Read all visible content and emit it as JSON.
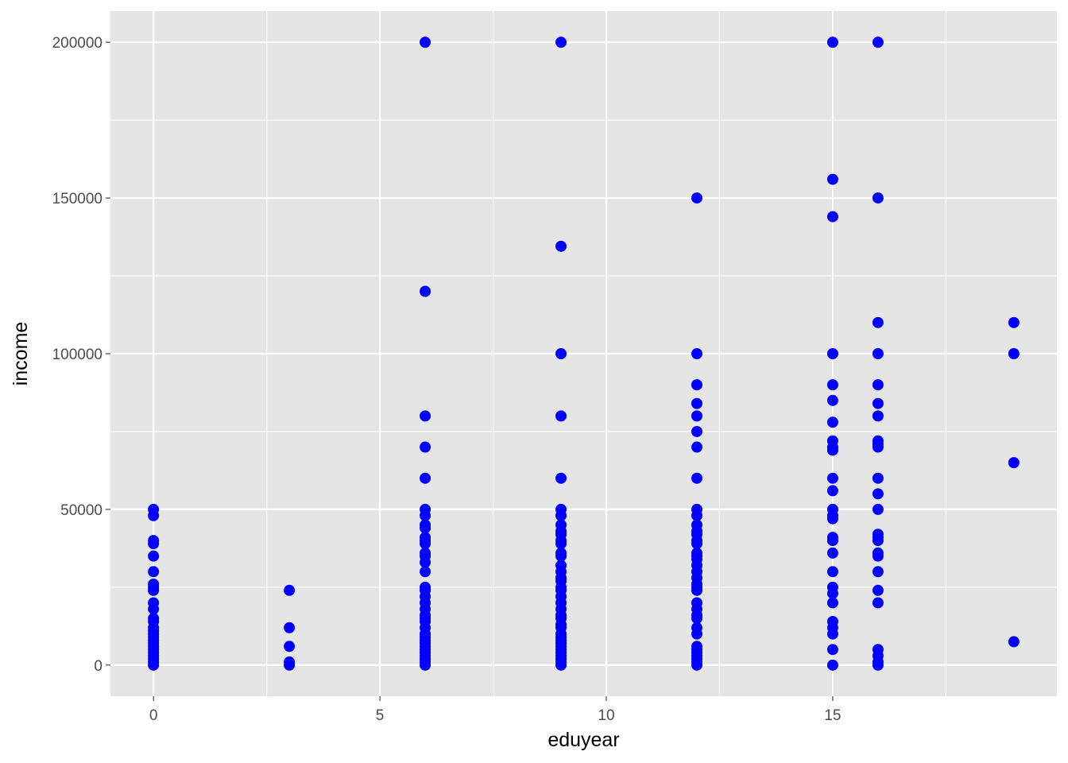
{
  "chart_data": {
    "type": "scatter",
    "title": "",
    "xlabel": "eduyear",
    "ylabel": "income",
    "xlim": [
      -0.95,
      19.95
    ],
    "ylim": [
      -10000,
      210000
    ],
    "x_major_ticks": [
      0,
      5,
      10,
      15
    ],
    "x_tick_labels": [
      "0",
      "5",
      "10",
      "15"
    ],
    "x_minor_ticks": [
      2.5,
      7.5,
      12.5,
      17.5
    ],
    "y_major_ticks": [
      0,
      50000,
      100000,
      150000,
      200000
    ],
    "y_tick_labels": [
      "0",
      "50000",
      "100000",
      "150000",
      "200000"
    ],
    "y_minor_ticks": [
      25000,
      75000,
      125000,
      175000
    ],
    "grid": true,
    "legend": "none",
    "colors": {
      "panel": "#e5e5e5",
      "grid": "#ffffff",
      "point": "#0000ff",
      "tick_text": "#4d4d4d",
      "tick_mark": "#333333",
      "axis_title": "#000000"
    },
    "series": [
      {
        "points": [
          [
            0,
            0
          ],
          [
            0,
            1000
          ],
          [
            0,
            2000
          ],
          [
            0,
            3000
          ],
          [
            0,
            4000
          ],
          [
            0,
            5000
          ],
          [
            0,
            6000
          ],
          [
            0,
            7000
          ],
          [
            0,
            8000
          ],
          [
            0,
            9000
          ],
          [
            0,
            10000
          ],
          [
            0,
            11000
          ],
          [
            0,
            12000
          ],
          [
            0,
            14000
          ],
          [
            0,
            15000
          ],
          [
            0,
            18000
          ],
          [
            0,
            20000
          ],
          [
            0,
            24000
          ],
          [
            0,
            25000
          ],
          [
            0,
            26000
          ],
          [
            0,
            30000
          ],
          [
            0,
            35000
          ],
          [
            0,
            39000
          ],
          [
            0,
            40000
          ],
          [
            0,
            48000
          ],
          [
            0,
            50000
          ],
          [
            3,
            0
          ],
          [
            3,
            1000
          ],
          [
            3,
            6000
          ],
          [
            3,
            12000
          ],
          [
            3,
            24000
          ],
          [
            6,
            0
          ],
          [
            6,
            1000
          ],
          [
            6,
            2000
          ],
          [
            6,
            3000
          ],
          [
            6,
            4000
          ],
          [
            6,
            5000
          ],
          [
            6,
            6000
          ],
          [
            6,
            7000
          ],
          [
            6,
            8000
          ],
          [
            6,
            9000
          ],
          [
            6,
            10000
          ],
          [
            6,
            12000
          ],
          [
            6,
            14000
          ],
          [
            6,
            15000
          ],
          [
            6,
            16000
          ],
          [
            6,
            18000
          ],
          [
            6,
            20000
          ],
          [
            6,
            22000
          ],
          [
            6,
            24000
          ],
          [
            6,
            25000
          ],
          [
            6,
            30000
          ],
          [
            6,
            33000
          ],
          [
            6,
            35000
          ],
          [
            6,
            36000
          ],
          [
            6,
            39000
          ],
          [
            6,
            40000
          ],
          [
            6,
            41000
          ],
          [
            6,
            44000
          ],
          [
            6,
            45000
          ],
          [
            6,
            48000
          ],
          [
            6,
            50000
          ],
          [
            6,
            60000
          ],
          [
            6,
            70000
          ],
          [
            6,
            80000
          ],
          [
            6,
            120000
          ],
          [
            6,
            200000
          ],
          [
            9,
            0
          ],
          [
            9,
            1000
          ],
          [
            9,
            2000
          ],
          [
            9,
            3000
          ],
          [
            9,
            4000
          ],
          [
            9,
            5000
          ],
          [
            9,
            6000
          ],
          [
            9,
            7000
          ],
          [
            9,
            8000
          ],
          [
            9,
            9000
          ],
          [
            9,
            10000
          ],
          [
            9,
            12000
          ],
          [
            9,
            13000
          ],
          [
            9,
            15000
          ],
          [
            9,
            16000
          ],
          [
            9,
            18000
          ],
          [
            9,
            20000
          ],
          [
            9,
            22000
          ],
          [
            9,
            24000
          ],
          [
            9,
            25000
          ],
          [
            9,
            27000
          ],
          [
            9,
            28000
          ],
          [
            9,
            30000
          ],
          [
            9,
            32000
          ],
          [
            9,
            35000
          ],
          [
            9,
            36000
          ],
          [
            9,
            39000
          ],
          [
            9,
            40000
          ],
          [
            9,
            42000
          ],
          [
            9,
            43000
          ],
          [
            9,
            45000
          ],
          [
            9,
            48000
          ],
          [
            9,
            50000
          ],
          [
            9,
            60000
          ],
          [
            9,
            80000
          ],
          [
            9,
            100000
          ],
          [
            9,
            134500
          ],
          [
            9,
            200000
          ],
          [
            12,
            0
          ],
          [
            12,
            1000
          ],
          [
            12,
            2000
          ],
          [
            12,
            3000
          ],
          [
            12,
            4000
          ],
          [
            12,
            5000
          ],
          [
            12,
            6000
          ],
          [
            12,
            10000
          ],
          [
            12,
            12000
          ],
          [
            12,
            15000
          ],
          [
            12,
            16000
          ],
          [
            12,
            18000
          ],
          [
            12,
            20000
          ],
          [
            12,
            24000
          ],
          [
            12,
            25000
          ],
          [
            12,
            26000
          ],
          [
            12,
            28000
          ],
          [
            12,
            30000
          ],
          [
            12,
            32000
          ],
          [
            12,
            34000
          ],
          [
            12,
            35000
          ],
          [
            12,
            36000
          ],
          [
            12,
            39000
          ],
          [
            12,
            40000
          ],
          [
            12,
            42000
          ],
          [
            12,
            43000
          ],
          [
            12,
            45000
          ],
          [
            12,
            48000
          ],
          [
            12,
            50000
          ],
          [
            12,
            60000
          ],
          [
            12,
            70000
          ],
          [
            12,
            75000
          ],
          [
            12,
            80000
          ],
          [
            12,
            84000
          ],
          [
            12,
            90000
          ],
          [
            12,
            100000
          ],
          [
            12,
            150000
          ],
          [
            15,
            0
          ],
          [
            15,
            5000
          ],
          [
            15,
            10000
          ],
          [
            15,
            12000
          ],
          [
            15,
            14000
          ],
          [
            15,
            20000
          ],
          [
            15,
            23000
          ],
          [
            15,
            25000
          ],
          [
            15,
            30000
          ],
          [
            15,
            36000
          ],
          [
            15,
            40000
          ],
          [
            15,
            41000
          ],
          [
            15,
            47000
          ],
          [
            15,
            48000
          ],
          [
            15,
            50000
          ],
          [
            15,
            56000
          ],
          [
            15,
            60000
          ],
          [
            15,
            69000
          ],
          [
            15,
            70000
          ],
          [
            15,
            72000
          ],
          [
            15,
            78000
          ],
          [
            15,
            85000
          ],
          [
            15,
            90000
          ],
          [
            15,
            100000
          ],
          [
            15,
            144000
          ],
          [
            15,
            156000
          ],
          [
            15,
            200000
          ],
          [
            16,
            0
          ],
          [
            16,
            1000
          ],
          [
            16,
            3000
          ],
          [
            16,
            5000
          ],
          [
            16,
            20000
          ],
          [
            16,
            24000
          ],
          [
            16,
            30000
          ],
          [
            16,
            35000
          ],
          [
            16,
            36000
          ],
          [
            16,
            40000
          ],
          [
            16,
            41000
          ],
          [
            16,
            42000
          ],
          [
            16,
            50000
          ],
          [
            16,
            55000
          ],
          [
            16,
            60000
          ],
          [
            16,
            70000
          ],
          [
            16,
            71000
          ],
          [
            16,
            72000
          ],
          [
            16,
            80000
          ],
          [
            16,
            84000
          ],
          [
            16,
            90000
          ],
          [
            16,
            100000
          ],
          [
            16,
            110000
          ],
          [
            16,
            150000
          ],
          [
            16,
            200000
          ],
          [
            19,
            7500
          ],
          [
            19,
            65000
          ],
          [
            19,
            100000
          ],
          [
            19,
            110000
          ]
        ]
      }
    ]
  }
}
